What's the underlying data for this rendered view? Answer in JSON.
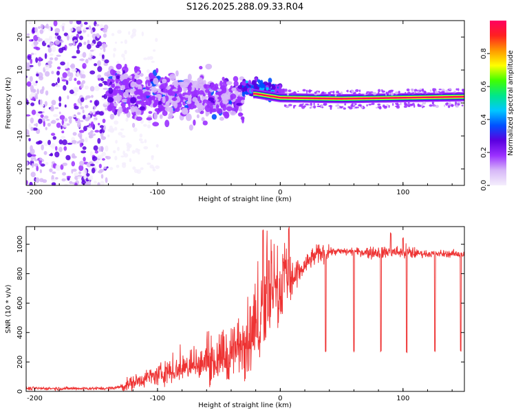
{
  "title": "S126.2025.288.09.33.R04",
  "chart_data": [
    {
      "type": "heatmap",
      "name": "spectrogram",
      "xlabel": "Height of straight line (km)",
      "ylabel": "Frequency (Hz)",
      "xlim": [
        -207,
        150
      ],
      "ylim": [
        -25,
        25
      ],
      "xticks": [
        -200,
        -100,
        0,
        100
      ],
      "yticks": [
        -20,
        -10,
        0,
        10,
        20
      ],
      "colorbar": {
        "label": "Normalized spectral amplitude",
        "range": [
          0,
          1
        ],
        "ticks": [
          0.0,
          0.2,
          0.4,
          0.6,
          0.8
        ],
        "tick_labels": [
          "0.0",
          "0.2",
          "0.4",
          "0.6",
          "0.8"
        ],
        "colors": [
          "#f4eefc",
          "#d7b8f8",
          "#9b30ff",
          "#5a00e0",
          "#0050ff",
          "#00c8ff",
          "#00e68a",
          "#40ff00",
          "#ffff00",
          "#ff9900",
          "#ff2020",
          "#ff0060"
        ]
      },
      "description_regions": [
        {
          "x_range": [
            -207,
            -140
          ],
          "freq_range": [
            -25,
            25
          ],
          "amplitude": 0.05
        },
        {
          "x_range": [
            -140,
            -30
          ],
          "freq_range": [
            -12,
            12
          ],
          "amplitude": 0.15
        },
        {
          "x_range": [
            -30,
            0
          ],
          "freq_range": [
            0,
            5
          ],
          "amplitude": 0.4
        },
        {
          "x_range": [
            0,
            150
          ],
          "freq_range": [
            0.5,
            2
          ],
          "amplitude": 0.95
        }
      ],
      "carrier_centre_hz": [
        {
          "x": -20,
          "f": 2.5
        },
        {
          "x": 0,
          "f": 1.3
        },
        {
          "x": 50,
          "f": 1.0
        },
        {
          "x": 100,
          "f": 1.3
        },
        {
          "x": 150,
          "f": 1.6
        }
      ]
    },
    {
      "type": "line",
      "name": "snr",
      "xlabel": "Height of straight line (km)",
      "ylabel": "SNR (10 * v/v)",
      "xlim": [
        -207,
        150
      ],
      "ylim": [
        0,
        1120
      ],
      "xticks": [
        -200,
        -100,
        0,
        100
      ],
      "yticks": [
        0,
        200,
        400,
        600,
        800,
        1000
      ],
      "color": "#ee3333",
      "series": [
        {
          "name": "SNR",
          "x": [
            -207,
            -180,
            -160,
            -140,
            -130,
            -120,
            -110,
            -100,
            -90,
            -80,
            -70,
            -60,
            -50,
            -40,
            -30,
            -20,
            -15,
            -10,
            -5,
            0,
            5,
            10,
            15,
            20,
            25,
            30,
            35,
            40,
            50,
            60,
            70,
            80,
            90,
            100,
            110,
            120,
            130,
            140,
            150
          ],
          "values": [
            20,
            20,
            20,
            20,
            30,
            60,
            90,
            110,
            130,
            150,
            170,
            190,
            210,
            260,
            330,
            400,
            480,
            580,
            640,
            700,
            750,
            770,
            800,
            850,
            900,
            930,
            945,
            950,
            950,
            950,
            945,
            945,
            950,
            945,
            940,
            935,
            935,
            935,
            930
          ]
        }
      ],
      "spikes": [
        {
          "x": -14,
          "value": 1100
        },
        {
          "x": 7,
          "value": 1120
        },
        {
          "x": 90,
          "value": 1080
        },
        {
          "x": 100,
          "value": 1050
        }
      ],
      "dips": [
        {
          "x": 37,
          "value": 270
        },
        {
          "x": 60,
          "value": 270
        },
        {
          "x": 82,
          "value": 270
        },
        {
          "x": 103,
          "value": 260
        },
        {
          "x": 126,
          "value": 270
        },
        {
          "x": 147,
          "value": 270
        }
      ]
    }
  ]
}
